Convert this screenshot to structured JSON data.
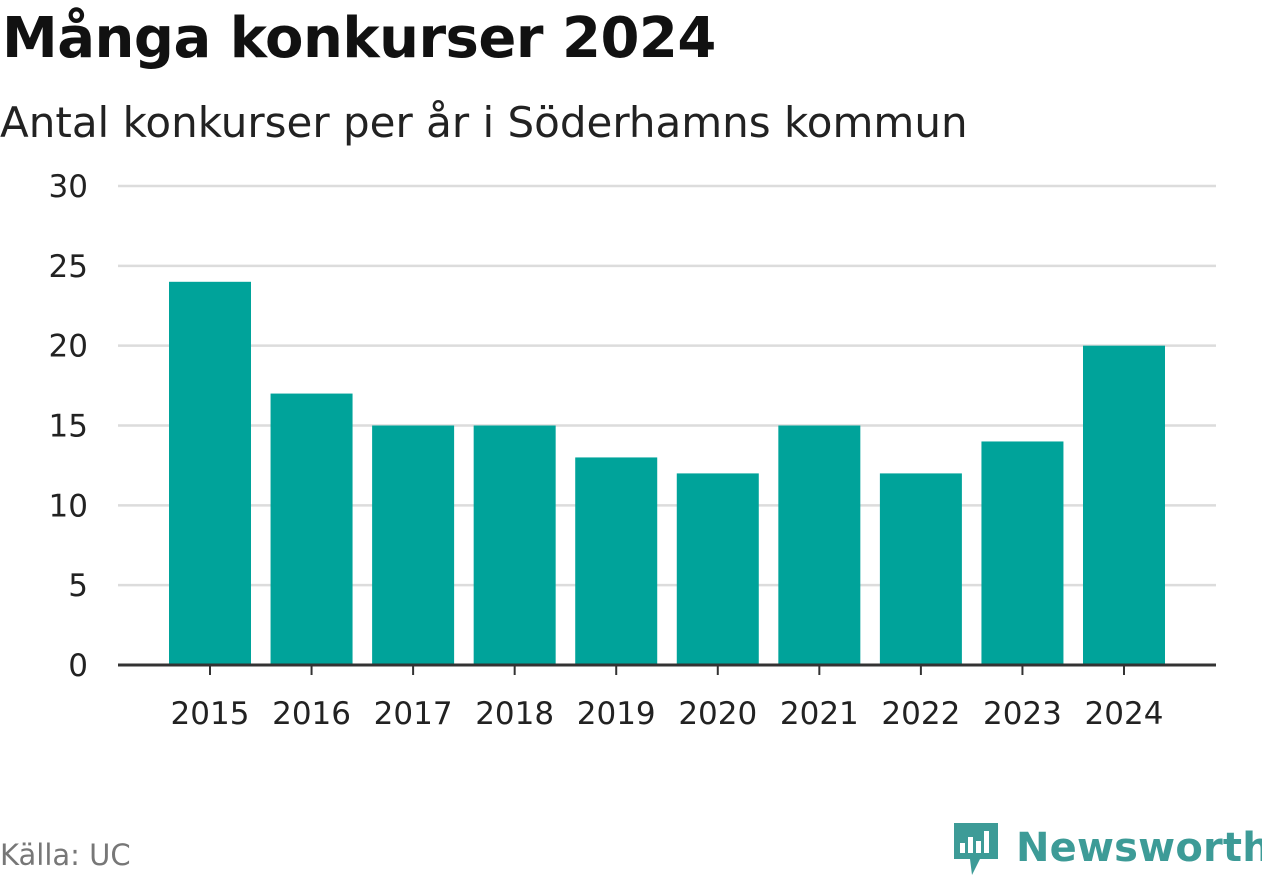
{
  "title": "Många konkurser 2024",
  "subtitle": "Antal konkurser per år i Söderhamns kommun",
  "source": "Källa: UC",
  "brand": {
    "name": "Newsworthy",
    "logo_icon": "newsworthy-bar-chart-icon",
    "color": "#3d9b97"
  },
  "colors": {
    "bar": "#00a39a",
    "grid": "#dcdcdc",
    "axis": "#333333",
    "text": "#222222"
  },
  "chart_data": {
    "type": "bar",
    "categories": [
      "2015",
      "2016",
      "2017",
      "2018",
      "2019",
      "2020",
      "2021",
      "2022",
      "2023",
      "2024"
    ],
    "values": [
      24,
      17,
      15,
      15,
      13,
      12,
      15,
      12,
      14,
      20
    ],
    "ylim": [
      0,
      30
    ],
    "yticks": [
      "0",
      "5",
      "10",
      "15",
      "20",
      "25",
      "30"
    ],
    "ytick_values": [
      0,
      5,
      10,
      15,
      20,
      25,
      30
    ],
    "grid": true,
    "xlabel": "",
    "ylabel": ""
  }
}
